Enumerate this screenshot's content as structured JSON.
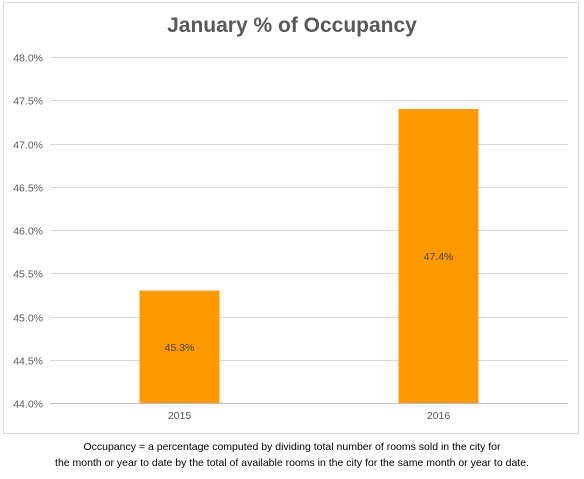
{
  "chart_data": {
    "type": "bar",
    "title": "January % of Occupancy",
    "categories": [
      "2015",
      "2016"
    ],
    "values": [
      45.3,
      47.4
    ],
    "data_labels": [
      "45.3%",
      "47.4%"
    ],
    "ylim": [
      44.0,
      48.0
    ],
    "yticks": [
      44.0,
      44.5,
      45.0,
      45.5,
      46.0,
      46.5,
      47.0,
      47.5,
      48.0
    ],
    "ytick_labels": [
      "44.0%",
      "44.5%",
      "45.0%",
      "45.5%",
      "46.0%",
      "46.5%",
      "47.0%",
      "47.5%",
      "48.0%"
    ],
    "grid": true,
    "legend": "none",
    "bar_color": "#ff9900",
    "grid_color": "#d9d9d9"
  },
  "footnote": {
    "line1": "Occupancy = a percentage computed by dividing total number of rooms sold in the city for",
    "line2": "the month or year to date by the total of available rooms in the city for the same month or year to date."
  }
}
